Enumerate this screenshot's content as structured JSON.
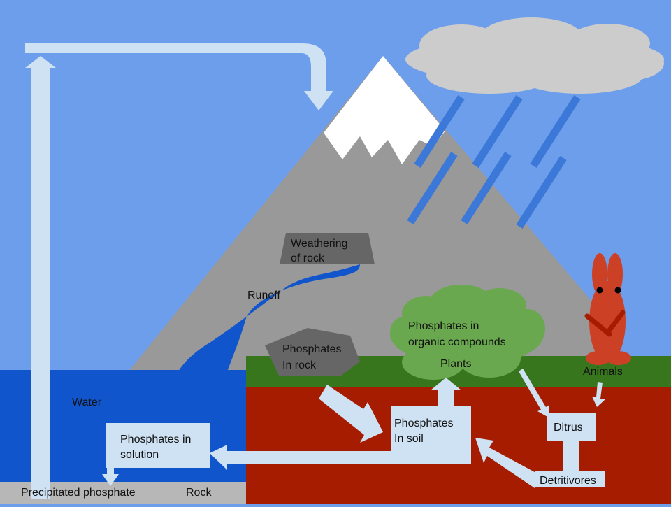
{
  "labels": {
    "weathering_line1": "Weathering",
    "weathering_line2": "of rock",
    "runoff": "Runoff",
    "phosphates_rock_line1": "Phosphates",
    "phosphates_rock_line2": "In rock",
    "organic_line1": "Phosphates in",
    "organic_line2": "organic compounds",
    "plants": "Plants",
    "animals": "Animals",
    "water": "Water",
    "solution_line1": "Phosphates in",
    "solution_line2": "solution",
    "soil_line1": "Phosphates",
    "soil_line2": "In soil",
    "ditrus": "Ditrus",
    "detritivores": "Detritivores",
    "precipitated": "Precipitated phosphate",
    "rock": "Rock"
  },
  "colors": {
    "sky": "#6d9eeb",
    "mountain": "#999999",
    "snow": "#ffffff",
    "cloud": "#cccccc",
    "rain": "#3c78d8",
    "water": "#1155cc",
    "grass": "#38761d",
    "soil": "#a61c00",
    "bedrock": "#b7b7b7",
    "label_box": "#cfe2f3",
    "arrow": "#cfe2f3",
    "bush": "#6aa84f",
    "rock_pentagon": "#666666",
    "rabbit": "#cc4125"
  }
}
